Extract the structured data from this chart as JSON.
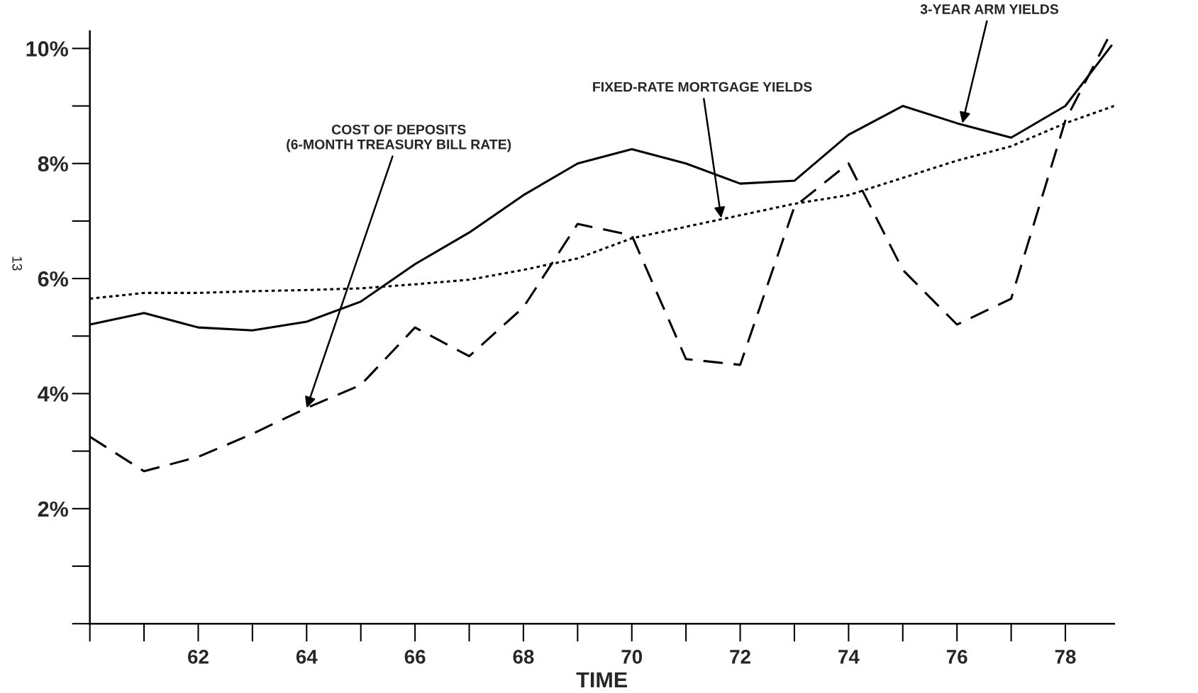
{
  "chart_data": {
    "type": "line",
    "xlabel": "TIME",
    "series": [
      {
        "color": "#000000",
        "line_style": "solid",
        "x": [
          60,
          61,
          62,
          63,
          64,
          65,
          66,
          67,
          68,
          69,
          70,
          71,
          72,
          73,
          74,
          75,
          76,
          77,
          78,
          78.85
        ],
        "values": [
          5.2,
          5.4,
          5.15,
          5.1,
          5.25,
          5.6,
          6.25,
          6.8,
          7.45,
          8.0,
          8.25,
          8.0,
          7.65,
          7.7,
          8.5,
          9.0,
          8.7,
          8.45,
          9.0,
          10.05
        ]
      },
      {
        "color": "#000000",
        "line_style": "dotted",
        "x": [
          60,
          61,
          62,
          63,
          64,
          65,
          66,
          67,
          68,
          69,
          70,
          71,
          72,
          73,
          74,
          75,
          76,
          77,
          78,
          78.9
        ],
        "values": [
          5.65,
          5.75,
          5.75,
          5.78,
          5.8,
          5.83,
          5.9,
          5.98,
          6.15,
          6.35,
          6.7,
          6.9,
          7.1,
          7.3,
          7.45,
          7.75,
          8.05,
          8.3,
          8.7,
          9.0
        ]
      },
      {
        "color": "#000000",
        "line_style": "dashed",
        "x": [
          60,
          61,
          62,
          63,
          64,
          65,
          66,
          67,
          68,
          69,
          70,
          71,
          72,
          73,
          74,
          75,
          76,
          77,
          78,
          78.8
        ],
        "values": [
          3.25,
          2.65,
          2.9,
          3.3,
          3.75,
          4.15,
          5.15,
          4.65,
          5.5,
          6.95,
          6.75,
          4.6,
          4.5,
          7.25,
          8.0,
          6.15,
          5.2,
          5.65,
          8.75,
          10.2
        ]
      }
    ],
    "xlim": [
      60,
      78.9
    ],
    "xticks": [
      62,
      64,
      66,
      68,
      70,
      72,
      74,
      76,
      78
    ],
    "ylim": [
      0,
      10.3
    ],
    "yticks": [
      {
        "value": 2,
        "label": "2%"
      },
      {
        "value": 4,
        "label": "4%"
      },
      {
        "value": 6,
        "label": "6%"
      },
      {
        "value": 8,
        "label": "8%"
      },
      {
        "value": 10,
        "label": "10%"
      }
    ],
    "annotations": [
      {
        "text": "3-YEAR ARM YIELDS",
        "x": 76.1,
        "y": 8.7
      },
      {
        "text": "FIXED-RATE MORTGAGE YIELDS",
        "x": 71.65,
        "y": 7.05
      },
      {
        "text": "COST OF DEPOSITS\n(6-MONTH TREASURY BILL RATE)",
        "x": 64.0,
        "y": 3.75
      },
      "13"
    ],
    "grid": false,
    "legend": false
  }
}
